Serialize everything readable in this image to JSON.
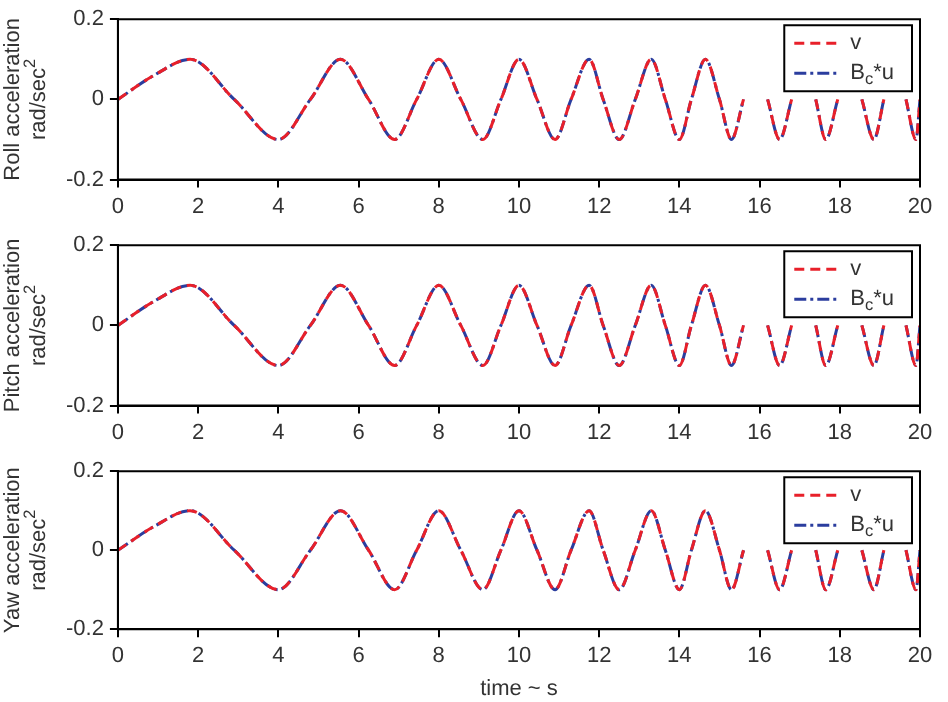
{
  "chart_data": [
    {
      "type": "line",
      "ylabel": "Roll acceleration\nrad/sec$^{2}$",
      "xlim": [
        0,
        20
      ],
      "xticks": [
        0,
        2,
        4,
        6,
        8,
        10,
        12,
        14,
        16,
        18,
        20
      ],
      "ylim": [
        -0.2,
        0.2
      ],
      "yticks": [
        -0.2,
        0,
        0.2
      ],
      "legend": "top right",
      "grid": false,
      "x": [
        0,
        0.9,
        1.8,
        2.9,
        4.0,
        4.8,
        5.55,
        6.25,
        6.9,
        7.45,
        8.0,
        8.55,
        9.1,
        9.55,
        10.0,
        10.45,
        10.9,
        11.3,
        11.75,
        12.1,
        12.5,
        12.9,
        13.3,
        13.65,
        14.0,
        14.3,
        14.65,
        15.0,
        15.3,
        15.6,
        15.9,
        16.2,
        16.5,
        16.8,
        17.1,
        17.4,
        17.65,
        17.95,
        18.25,
        18.55,
        18.85,
        19.1,
        19.4,
        19.65,
        19.9,
        20
      ],
      "series": [
        {
          "name": "v",
          "color": "#e8202a",
          "line_style": "dashed",
          "values": [
            0,
            0.06,
            0.1,
            0,
            -0.1,
            0,
            0.1,
            0,
            -0.1,
            0,
            0.1,
            0,
            -0.1,
            0,
            0.1,
            0,
            -0.1,
            0,
            0.1,
            0,
            -0.1,
            0,
            0.1,
            0,
            -0.1,
            0,
            0.1,
            0,
            -0.1,
            0,
            null,
            0,
            -0.1,
            0,
            null,
            0,
            -0.1,
            0,
            null,
            0,
            -0.1,
            0,
            null,
            0,
            -0.1,
            0
          ]
        },
        {
          "name": "B$_{c}$*u",
          "color": "#2b3d9e",
          "line_style": "dotted",
          "values": [
            0,
            0.06,
            0.1,
            0,
            -0.1,
            0,
            0.1,
            0,
            -0.1,
            0,
            0.1,
            0,
            -0.1,
            0,
            0.1,
            0,
            -0.1,
            0,
            0.1,
            0,
            -0.1,
            0,
            0.1,
            0,
            -0.1,
            0,
            0.1,
            0,
            -0.1,
            0,
            null,
            0,
            -0.1,
            0,
            null,
            0,
            -0.1,
            0,
            null,
            0,
            -0.1,
            0,
            null,
            0,
            -0.1,
            0
          ]
        }
      ]
    },
    {
      "type": "line",
      "ylabel": "Pitch acceleration\nrad/sec$^{2}$",
      "xlim": [
        0,
        20
      ],
      "xticks": [
        0,
        2,
        4,
        6,
        8,
        10,
        12,
        14,
        16,
        18,
        20
      ],
      "ylim": [
        -0.2,
        0.2
      ],
      "yticks": [
        -0.2,
        0,
        0.2
      ],
      "legend": "top right",
      "grid": false,
      "x": [
        0,
        0.9,
        1.8,
        2.9,
        4.0,
        4.8,
        5.55,
        6.25,
        6.9,
        7.45,
        8.0,
        8.55,
        9.1,
        9.55,
        10.0,
        10.45,
        10.9,
        11.3,
        11.75,
        12.1,
        12.5,
        12.9,
        13.3,
        13.65,
        14.0,
        14.3,
        14.65,
        15.0,
        15.3,
        15.6,
        15.9,
        16.2,
        16.5,
        16.8,
        17.1,
        17.4,
        17.65,
        17.95,
        18.25,
        18.55,
        18.85,
        19.1,
        19.4,
        19.65,
        19.9,
        20
      ],
      "series": [
        {
          "name": "v",
          "color": "#e8202a",
          "line_style": "dashed",
          "values": [
            0,
            0.06,
            0.1,
            0,
            -0.1,
            0,
            0.1,
            0,
            -0.1,
            0,
            0.1,
            0,
            -0.1,
            0,
            0.1,
            0,
            -0.1,
            0,
            0.1,
            0,
            -0.1,
            0,
            0.1,
            0,
            -0.1,
            0,
            0.1,
            0,
            -0.1,
            0,
            null,
            0,
            -0.1,
            0,
            null,
            0,
            -0.1,
            0,
            null,
            0,
            -0.1,
            0,
            null,
            0,
            -0.1,
            0
          ]
        },
        {
          "name": "B$_{c}$*u",
          "color": "#2b3d9e",
          "line_style": "dotted",
          "values": [
            0,
            0.06,
            0.1,
            0,
            -0.1,
            0,
            0.1,
            0,
            -0.1,
            0,
            0.1,
            0,
            -0.1,
            0,
            0.1,
            0,
            -0.1,
            0,
            0.1,
            0,
            -0.1,
            0,
            0.1,
            0,
            -0.1,
            0,
            0.1,
            0,
            -0.1,
            0,
            null,
            0,
            -0.1,
            0,
            null,
            0,
            -0.1,
            0,
            null,
            0,
            -0.1,
            0,
            null,
            0,
            -0.1,
            0
          ]
        }
      ]
    },
    {
      "type": "line",
      "ylabel": "Yaw acceleration\nrad/sec$^{2}$",
      "xlabel": "time ~ s",
      "xlim": [
        0,
        20
      ],
      "xticks": [
        0,
        2,
        4,
        6,
        8,
        10,
        12,
        14,
        16,
        18,
        20
      ],
      "ylim": [
        -0.2,
        0.2
      ],
      "yticks": [
        -0.2,
        0,
        0.2
      ],
      "legend": "top right",
      "grid": false,
      "x": [
        0,
        0.9,
        1.8,
        2.9,
        4.0,
        4.8,
        5.55,
        6.25,
        6.9,
        7.45,
        8.0,
        8.55,
        9.1,
        9.55,
        10.0,
        10.45,
        10.9,
        11.3,
        11.75,
        12.1,
        12.5,
        12.9,
        13.3,
        13.65,
        14.0,
        14.3,
        14.65,
        15.0,
        15.3,
        15.6,
        15.9,
        16.2,
        16.5,
        16.8,
        17.1,
        17.4,
        17.65,
        17.95,
        18.25,
        18.55,
        18.85,
        19.1,
        19.4,
        19.65,
        19.9,
        20
      ],
      "series": [
        {
          "name": "v",
          "color": "#e8202a",
          "line_style": "dashed",
          "values": [
            0,
            0.06,
            0.1,
            0,
            -0.1,
            0,
            0.1,
            0,
            -0.1,
            0,
            0.1,
            0,
            -0.1,
            0,
            0.1,
            0,
            -0.1,
            0,
            0.1,
            0,
            -0.1,
            0,
            0.1,
            0,
            -0.1,
            0,
            0.1,
            0,
            -0.1,
            0,
            null,
            0,
            -0.1,
            0,
            null,
            0,
            -0.1,
            0,
            null,
            0,
            -0.1,
            0,
            null,
            0,
            -0.1,
            0
          ]
        },
        {
          "name": "B$_{c}$*u",
          "color": "#2b3d9e",
          "line_style": "dotted",
          "values": [
            0,
            0.06,
            0.1,
            0,
            -0.1,
            0,
            0.1,
            0,
            -0.1,
            0,
            0.1,
            0,
            -0.1,
            0,
            0.1,
            0,
            -0.1,
            0,
            0.1,
            0,
            -0.1,
            0,
            0.1,
            0,
            -0.1,
            0,
            0.1,
            0,
            -0.1,
            0,
            null,
            0,
            -0.1,
            0,
            null,
            0,
            -0.1,
            0,
            null,
            0,
            -0.1,
            0,
            null,
            0,
            -0.1,
            0
          ]
        }
      ]
    }
  ]
}
